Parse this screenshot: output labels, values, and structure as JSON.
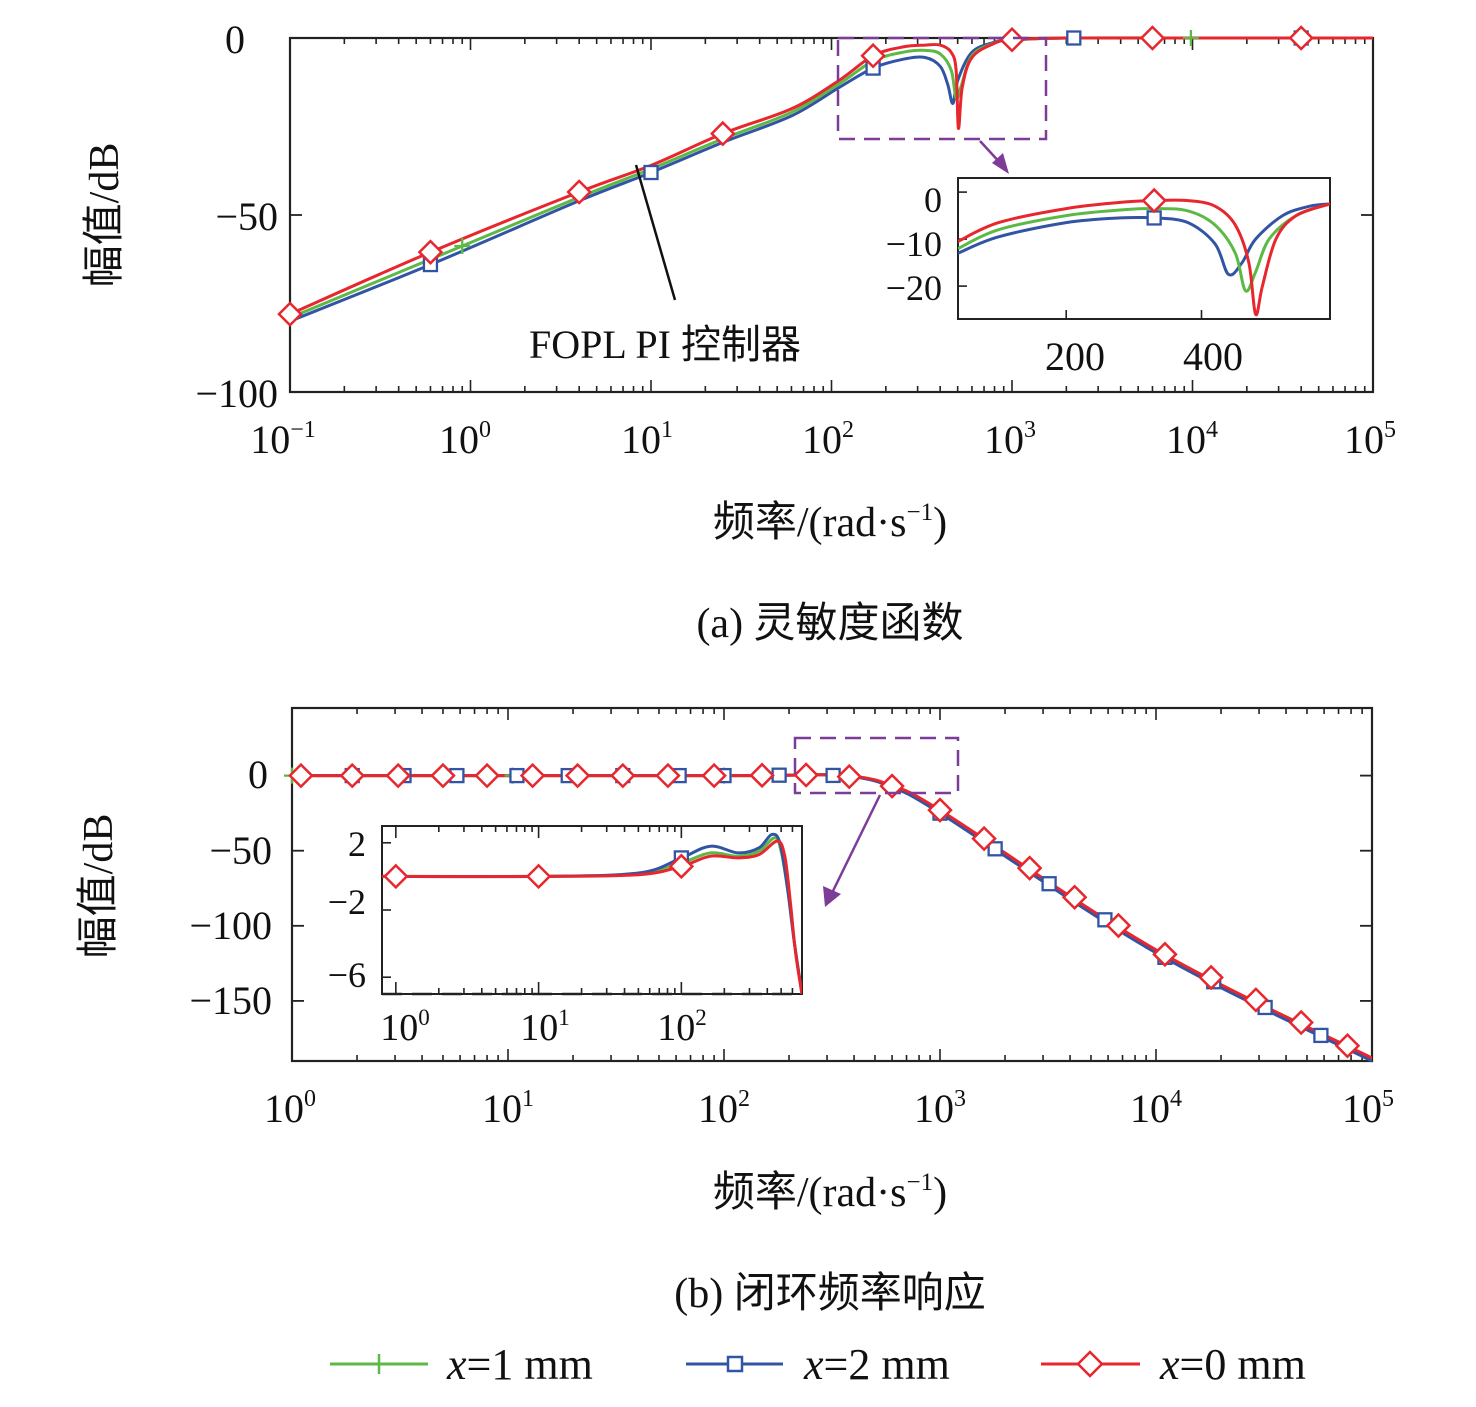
{
  "legend": {
    "items": [
      {
        "var": "x",
        "text": "=1 mm",
        "color": "#5cb946",
        "marker": "plus"
      },
      {
        "var": "x",
        "text": "=2 mm",
        "color": "#3254a4",
        "marker": "square"
      },
      {
        "var": "x",
        "text": "=0 mm",
        "color": "#e8262d",
        "marker": "diamond"
      }
    ]
  },
  "annotation_color": "#7d3c98",
  "chart_data": [
    {
      "id": "a",
      "type": "line",
      "title": "(a) 灵敏度函数",
      "xlabel": "频率/(rad·s",
      "xlabel_sup": "−1",
      "xlabel_close": ")",
      "ylabel": "幅值/dB",
      "xscale": "log",
      "xlim": [
        0.1,
        100000
      ],
      "ylim": [
        -100,
        0
      ],
      "xticks": [
        {
          "b": "10",
          "e": "−1"
        },
        {
          "b": "10",
          "e": "0"
        },
        {
          "b": "10",
          "e": "1"
        },
        {
          "b": "10",
          "e": "2"
        },
        {
          "b": "10",
          "e": "3"
        },
        {
          "b": "10",
          "e": "4"
        },
        {
          "b": "10",
          "e": "5"
        }
      ],
      "yticks": [
        "0",
        "−50",
        "−100"
      ],
      "annotation": "FOPL PI 控制器",
      "series": [
        {
          "name": "x=2 mm",
          "color": "#3254a4",
          "marker": "square",
          "x": [
            0.1,
            0.6,
            4,
            10,
            25,
            60,
            110,
            170,
            250,
            330,
            400,
            440,
            470,
            500,
            600,
            800,
            1000,
            2000,
            10000,
            100000
          ],
          "y": [
            -80,
            -64,
            -46,
            -38,
            -29.5,
            -22,
            -14,
            -8.5,
            -6,
            -5.5,
            -8,
            -13,
            -18.5,
            -12,
            -4,
            -1.2,
            -0.5,
            0,
            0,
            0
          ]
        },
        {
          "name": "x=1 mm",
          "color": "#5cb946",
          "marker": "plus",
          "x": [
            0.1,
            0.6,
            4,
            10,
            25,
            60,
            110,
            170,
            250,
            330,
            400,
            460,
            490,
            520,
            600,
            800,
            1000,
            2000,
            10000,
            100000
          ],
          "y": [
            -79,
            -62.5,
            -45,
            -37,
            -28.5,
            -21,
            -13,
            -6.5,
            -4,
            -3.5,
            -4.5,
            -9,
            -17,
            -14,
            -5,
            -1.4,
            -0.6,
            0,
            0,
            0
          ]
        },
        {
          "name": "x=0 mm",
          "color": "#e8262d",
          "marker": "diamond",
          "x": [
            0.1,
            0.6,
            4,
            10,
            25,
            60,
            110,
            170,
            250,
            330,
            400,
            460,
            490,
            505,
            530,
            600,
            800,
            1000,
            2000,
            10000,
            100000
          ],
          "y": [
            -78,
            -60.5,
            -43.5,
            -36,
            -27,
            -20,
            -12,
            -5,
            -2.5,
            -2,
            -2,
            -4,
            -9,
            -25.5,
            -14,
            -5.5,
            -1.5,
            -0.5,
            0,
            0,
            0
          ]
        }
      ],
      "marker_points": {
        "x=2 mm": [
          0.6,
          10,
          170,
          2200,
          40000
        ],
        "x=1 mm": [
          0.1,
          0.9,
          9800,
          40000
        ],
        "x=0 mm": [
          0.1,
          0.6,
          4,
          25,
          170,
          1000,
          6000,
          40000
        ]
      },
      "inset": {
        "xlim": [
          40,
          590
        ],
        "ylim": [
          -27,
          3
        ],
        "xticks": [
          "200",
          "400"
        ],
        "yticks": [
          "0",
          "−10",
          "−20"
        ],
        "series": [
          {
            "name": "x=2 mm",
            "color": "#3254a4",
            "x": [
              40,
              100,
              200,
              280,
              330,
              380,
              420,
              440,
              460,
              480,
              520,
              560,
              590
            ],
            "y": [
              -13,
              -9.5,
              -6.5,
              -5.5,
              -5.5,
              -6.5,
              -11,
              -17.5,
              -15,
              -10,
              -5,
              -3,
              -2.5
            ]
          },
          {
            "name": "x=1 mm",
            "color": "#5cb946",
            "x": [
              40,
              100,
              200,
              280,
              330,
              380,
              420,
              450,
              465,
              480,
              500,
              540,
              590
            ],
            "y": [
              -12,
              -8,
              -5,
              -3.8,
              -3.5,
              -4,
              -7,
              -13,
              -21,
              -17,
              -10,
              -5,
              -2.5
            ]
          },
          {
            "name": "x=0 mm",
            "color": "#e8262d",
            "x": [
              40,
              100,
              200,
              280,
              330,
              380,
              420,
              450,
              470,
              480,
              490,
              510,
              540,
              590
            ],
            "y": [
              -10.5,
              -6.5,
              -3.5,
              -2.2,
              -1.8,
              -1.8,
              -3,
              -7,
              -15,
              -26,
              -20,
              -10,
              -5,
              -2.5
            ]
          }
        ],
        "markers": [
          {
            "series": "x=2 mm",
            "x": 330,
            "y": -5.5
          },
          {
            "series": "x=0 mm",
            "x": 330,
            "y": -1.8
          }
        ]
      }
    },
    {
      "id": "b",
      "type": "line",
      "title": "(b) 闭环频率响应",
      "xlabel": "频率/(rad·s",
      "xlabel_sup": "−1",
      "xlabel_close": ")",
      "ylabel": "幅值/dB",
      "xscale": "log",
      "xlim": [
        1,
        100000
      ],
      "ylim": [
        -190,
        45
      ],
      "xticks": [
        {
          "b": "10",
          "e": "0"
        },
        {
          "b": "10",
          "e": "1"
        },
        {
          "b": "10",
          "e": "2"
        },
        {
          "b": "10",
          "e": "3"
        },
        {
          "b": "10",
          "e": "4"
        },
        {
          "b": "10",
          "e": "5"
        }
      ],
      "yticks": [
        "0",
        "−50",
        "−100",
        "−150"
      ],
      "series": [
        {
          "name": "x=1 mm",
          "color": "#5cb946",
          "marker": "plus",
          "x": [
            1,
            100,
            300,
            450,
            600,
            1000,
            10000,
            100000
          ],
          "y": [
            0,
            0,
            0.5,
            -2,
            -8,
            -24,
            -117,
            -189
          ]
        },
        {
          "name": "x=2 mm",
          "color": "#3254a4",
          "marker": "square",
          "x": [
            1,
            100,
            300,
            450,
            600,
            1000,
            10000,
            100000
          ],
          "y": [
            0,
            0,
            0.5,
            -2,
            -8,
            -25,
            -118,
            -190
          ]
        },
        {
          "name": "x=0 mm",
          "color": "#e8262d",
          "marker": "diamond",
          "x": [
            1,
            100,
            300,
            450,
            600,
            1000,
            10000,
            100000
          ],
          "y": [
            0,
            0,
            0.5,
            -1.5,
            -7,
            -23,
            -116,
            -188
          ]
        }
      ],
      "marker_points": {
        "x=2 mm": [
          1.9,
          3.3,
          5.8,
          11,
          19,
          34,
          62,
          100,
          180,
          320,
          1000,
          1800,
          3200,
          5800,
          11000,
          18500,
          32000,
          58000
        ],
        "x=1 mm": [
          1,
          10.5,
          100,
          1000
        ],
        "x=0 mm": [
          1.1,
          1.9,
          3.1,
          5,
          8,
          13,
          21,
          34,
          55,
          90,
          150,
          240,
          380,
          600,
          1000,
          1600,
          2600,
          4200,
          6700,
          11000,
          18000,
          29000,
          47000,
          77000
        ]
      },
      "inset": {
        "xlim": [
          0.8,
          700
        ],
        "ylim": [
          -7,
          3
        ],
        "xticks": [
          {
            "b": "10",
            "e": "0"
          },
          {
            "b": "10",
            "e": "1"
          },
          {
            "b": "10",
            "e": "2"
          }
        ],
        "yticks": [
          "2",
          "−2",
          "−6"
        ],
        "series": [
          {
            "name": "x=1 mm",
            "color": "#5cb946",
            "x": [
              0.8,
              10,
              50,
              100,
              160,
              250,
              350,
              450,
              500,
              560,
              620,
              700
            ],
            "y": [
              0,
              0,
              0.15,
              0.8,
              1.4,
              1.2,
              1.5,
              2.3,
              1.5,
              -1,
              -4,
              -7
            ]
          },
          {
            "name": "x=2 mm",
            "color": "#3254a4",
            "x": [
              0.8,
              10,
              50,
              100,
              160,
              250,
              350,
              430,
              490,
              550,
              620,
              700
            ],
            "y": [
              0,
              0,
              0.2,
              1.1,
              1.8,
              1.4,
              1.7,
              2.5,
              2,
              -0.5,
              -4,
              -7
            ]
          },
          {
            "name": "x=0 mm",
            "color": "#e8262d",
            "x": [
              0.8,
              10,
              50,
              100,
              160,
              250,
              350,
              470,
              530,
              580,
              630,
              700
            ],
            "y": [
              0,
              0,
              0.1,
              0.6,
              1.2,
              1.1,
              1.3,
              2.1,
              1.2,
              -1.5,
              -4.5,
              -7
            ]
          }
        ],
        "markers": [
          {
            "series": "x=0 mm",
            "x": 1,
            "y": 0
          },
          {
            "series": "x=0 mm",
            "x": 10,
            "y": 0
          },
          {
            "series": "x=2 mm",
            "x": 100,
            "y": 1.1
          },
          {
            "series": "x=0 mm",
            "x": 100,
            "y": 0.6
          }
        ]
      }
    }
  ]
}
